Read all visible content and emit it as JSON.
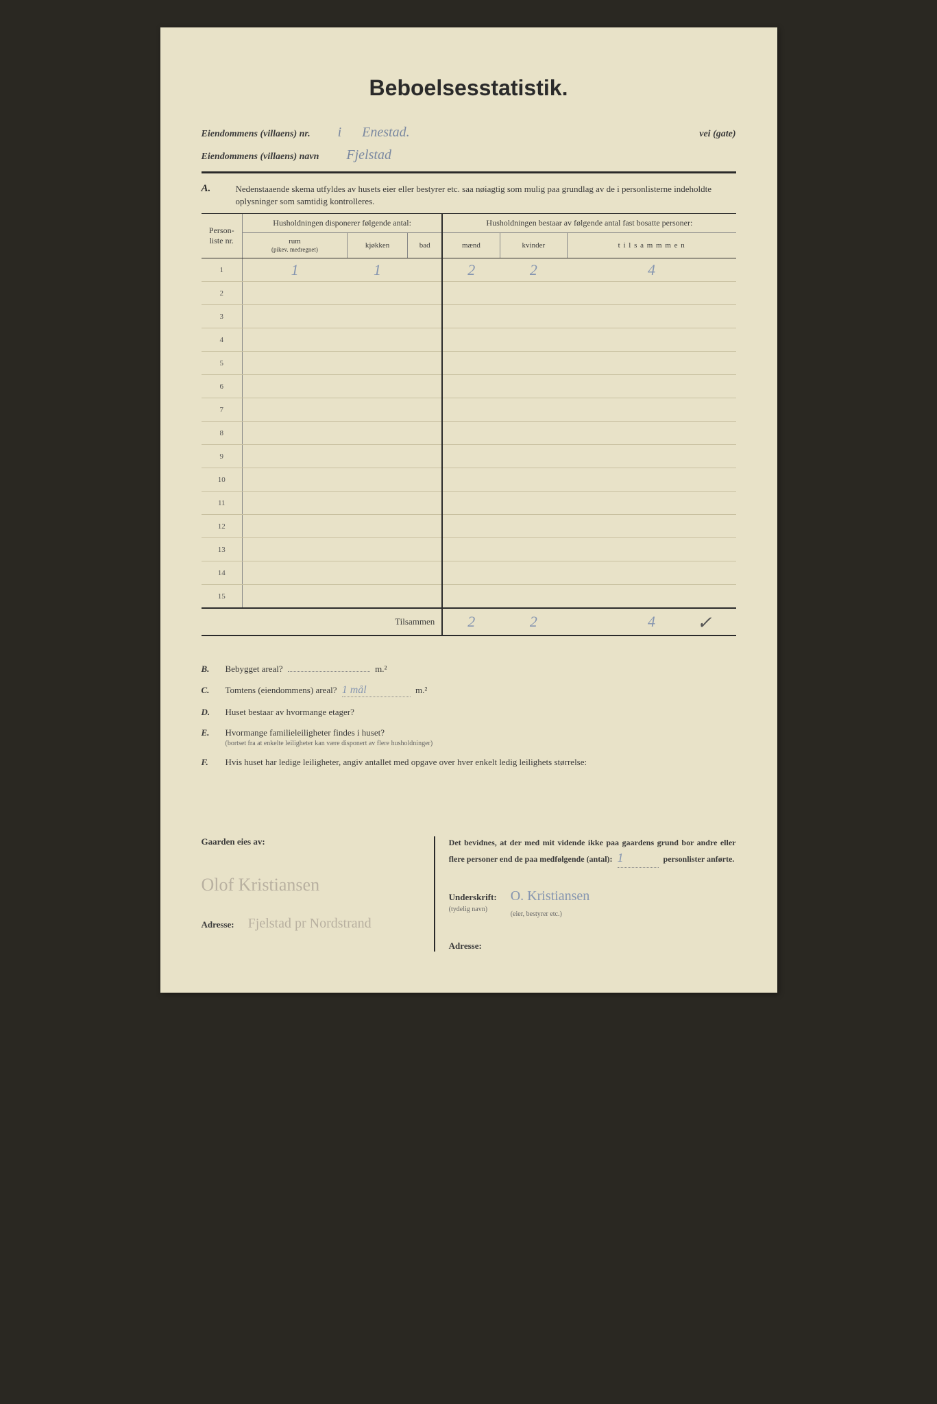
{
  "title": "Beboelsesstatistik.",
  "header": {
    "nr_label": "Eiendommens (villaens) nr.",
    "nr_value": "i",
    "street_value": "Enestad.",
    "vei_label": "vei (gate)",
    "navn_label": "Eiendommens (villaens) navn",
    "navn_value": "Fjelstad"
  },
  "sectionA": {
    "letter": "A.",
    "text": "Nedenstaaende skema utfyldes av husets eier eller bestyrer etc. saa nøiagtig som mulig paa grundlag av de i personlisterne indeholdte oplysninger som samtidig kontrolleres."
  },
  "table": {
    "col_person": "Person-liste nr.",
    "group_left": "Husholdningen disponerer følgende antal:",
    "group_right": "Husholdningen bestaar av følgende antal fast bosatte personer:",
    "col_rum": "rum",
    "col_rum_sub": "(pikev. medregnet)",
    "col_kjokken": "kjøkken",
    "col_bad": "bad",
    "col_maend": "mænd",
    "col_kvinder": "kvinder",
    "col_tilsammen": "t i l s a m m m e n",
    "rows": [
      {
        "nr": "1",
        "rum": "1",
        "kjokken": "1",
        "bad": "",
        "maend": "2",
        "kvinder": "2",
        "tilsammen": "4"
      },
      {
        "nr": "2",
        "rum": "",
        "kjokken": "",
        "bad": "",
        "maend": "",
        "kvinder": "",
        "tilsammen": ""
      },
      {
        "nr": "3",
        "rum": "",
        "kjokken": "",
        "bad": "",
        "maend": "",
        "kvinder": "",
        "tilsammen": ""
      },
      {
        "nr": "4",
        "rum": "",
        "kjokken": "",
        "bad": "",
        "maend": "",
        "kvinder": "",
        "tilsammen": ""
      },
      {
        "nr": "5",
        "rum": "",
        "kjokken": "",
        "bad": "",
        "maend": "",
        "kvinder": "",
        "tilsammen": ""
      },
      {
        "nr": "6",
        "rum": "",
        "kjokken": "",
        "bad": "",
        "maend": "",
        "kvinder": "",
        "tilsammen": ""
      },
      {
        "nr": "7",
        "rum": "",
        "kjokken": "",
        "bad": "",
        "maend": "",
        "kvinder": "",
        "tilsammen": ""
      },
      {
        "nr": "8",
        "rum": "",
        "kjokken": "",
        "bad": "",
        "maend": "",
        "kvinder": "",
        "tilsammen": ""
      },
      {
        "nr": "9",
        "rum": "",
        "kjokken": "",
        "bad": "",
        "maend": "",
        "kvinder": "",
        "tilsammen": ""
      },
      {
        "nr": "10",
        "rum": "",
        "kjokken": "",
        "bad": "",
        "maend": "",
        "kvinder": "",
        "tilsammen": ""
      },
      {
        "nr": "11",
        "rum": "",
        "kjokken": "",
        "bad": "",
        "maend": "",
        "kvinder": "",
        "tilsammen": ""
      },
      {
        "nr": "12",
        "rum": "",
        "kjokken": "",
        "bad": "",
        "maend": "",
        "kvinder": "",
        "tilsammen": ""
      },
      {
        "nr": "13",
        "rum": "",
        "kjokken": "",
        "bad": "",
        "maend": "",
        "kvinder": "",
        "tilsammen": ""
      },
      {
        "nr": "14",
        "rum": "",
        "kjokken": "",
        "bad": "",
        "maend": "",
        "kvinder": "",
        "tilsammen": ""
      },
      {
        "nr": "15",
        "rum": "",
        "kjokken": "",
        "bad": "",
        "maend": "",
        "kvinder": "",
        "tilsammen": ""
      }
    ],
    "totals_label": "Tilsammen",
    "totals": {
      "maend": "2",
      "kvinder": "2",
      "tilsammen": "4"
    },
    "checkmark": "✓"
  },
  "questions": {
    "b": {
      "letter": "B.",
      "text": "Bebygget areal?",
      "unit": "m.²"
    },
    "c": {
      "letter": "C.",
      "text": "Tomtens (eiendommens) areal?",
      "value": "1 mål",
      "unit": "m.²"
    },
    "d": {
      "letter": "D.",
      "text": "Huset bestaar av hvormange etager?"
    },
    "e": {
      "letter": "E.",
      "text": "Hvormange familieleiligheter findes i huset?",
      "sub": "(bortset fra at enkelte leiligheter kan være disponert av flere husholdninger)"
    },
    "f": {
      "letter": "F.",
      "text": "Hvis huset har ledige leiligheter, angiv antallet med opgave over hver enkelt ledig leilighets størrelse:"
    }
  },
  "footer": {
    "owner_label": "Gaarden eies av:",
    "owner_sig": "Olof Kristiansen",
    "owner_addr": "Fjelstad pr Nordstrand",
    "addr_label": "Adresse:",
    "witness_text_1": "Det bevidnes, at der med mit vidende ikke paa gaardens grund bor andre eller flere personer end de paa medfølgende (antal):",
    "witness_count": "1",
    "witness_text_2": "personlister anførte.",
    "sig_label": "Underskrift:",
    "sig_sub": "(tydelig navn)",
    "sig_value": "O. Kristiansen",
    "sig_role": "(eier, bestyrer etc.)",
    "addr2_label": "Adresse:"
  }
}
